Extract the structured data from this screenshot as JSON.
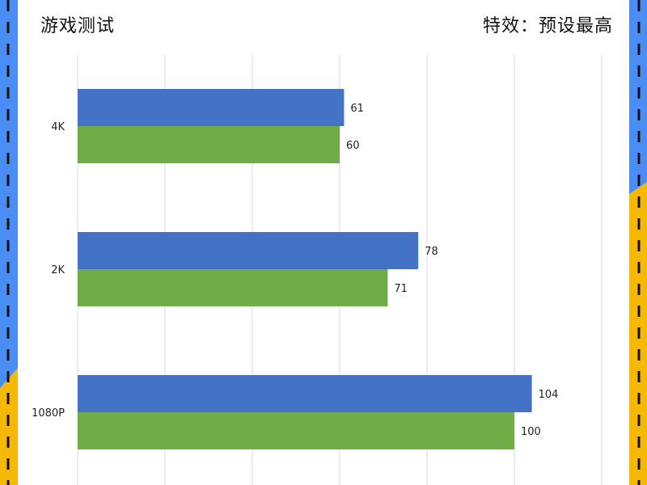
{
  "header": {
    "title_left": "游戏测试",
    "title_right": "特效：预设最高"
  },
  "colors": {
    "series_1": "#4472C4",
    "series_2": "#70AD47",
    "gridline": "#D9D9D9",
    "side_blue": "#4A8EF5",
    "side_yellow": "#F6B800",
    "side_dash": "#111111"
  },
  "chart_data": {
    "type": "bar",
    "orientation": "horizontal",
    "categories": [
      "4K",
      "2K",
      "1080P"
    ],
    "series": [
      {
        "values": [
          61,
          78,
          104
        ]
      },
      {
        "values": [
          60,
          71,
          100
        ]
      }
    ],
    "xlim": [
      0,
      120
    ],
    "grid": true,
    "legend": "none"
  }
}
